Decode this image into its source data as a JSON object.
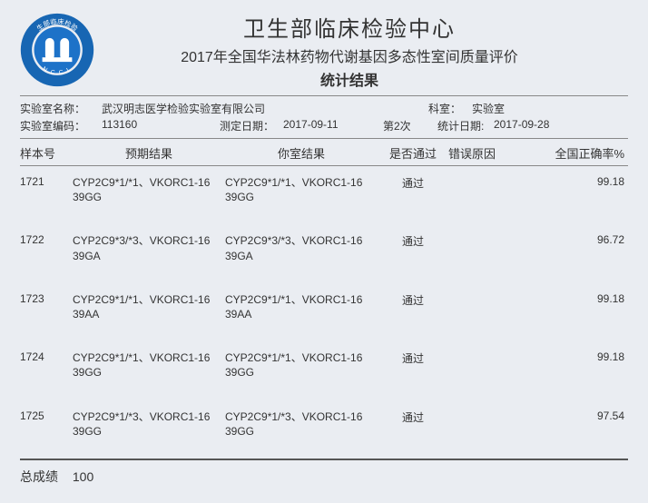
{
  "header": {
    "main_title": "卫生部临床检验中心",
    "sub_title": "2017年全国华法林药物代谢基因多态性室间质量评价",
    "stat_title": "统计结果",
    "logo": {
      "outer_color": "#1766b3",
      "inner_color": "#1d72c8",
      "text_color": "#ffffff",
      "top_text": "生部临床检验",
      "bottom_text": "N C C L"
    }
  },
  "meta": {
    "lab_name_label": "实验室名称：",
    "lab_name_value": "武汉明志医学检验实验室有限公司",
    "dept_label": "科室：",
    "dept_value": "实验室",
    "lab_code_label": "实验室编码：",
    "lab_code_value": "113160",
    "meas_date_label": "测定日期：",
    "meas_date_value": "2017-09-11",
    "round_label": "第2次",
    "stat_date_label": "统计日期:",
    "stat_date_value": "2017-09-28"
  },
  "columns": {
    "sample": "样本号",
    "expected": "预期结果",
    "yours": "你室结果",
    "pass": "是否通过",
    "error": "错误原因",
    "rate": "全国正确率%"
  },
  "rows": [
    {
      "sample": "1721",
      "exp": "CYP2C9*1/*1、VKORC1-1639GG",
      "yours": "CYP2C9*1/*1、VKORC1-1639GG",
      "pass": "通过",
      "err": "",
      "rate": "99.18"
    },
    {
      "sample": "1722",
      "exp": "CYP2C9*3/*3、VKORC1-1639GA",
      "yours": "CYP2C9*3/*3、VKORC1-1639GA",
      "pass": "通过",
      "err": "",
      "rate": "96.72"
    },
    {
      "sample": "1723",
      "exp": "CYP2C9*1/*1、VKORC1-1639AA",
      "yours": "CYP2C9*1/*1、VKORC1-1639AA",
      "pass": "通过",
      "err": "",
      "rate": "99.18"
    },
    {
      "sample": "1724",
      "exp": "CYP2C9*1/*1、VKORC1-1639GG",
      "yours": "CYP2C9*1/*1、VKORC1-1639GG",
      "pass": "通过",
      "err": "",
      "rate": "99.18"
    },
    {
      "sample": "1725",
      "exp": "CYP2C9*1/*3、VKORC1-1639GG",
      "yours": "CYP2C9*1/*3、VKORC1-1639GG",
      "pass": "通过",
      "err": "",
      "rate": "97.54"
    }
  ],
  "footer": {
    "total_label": "总成绩",
    "total_value": "100"
  }
}
